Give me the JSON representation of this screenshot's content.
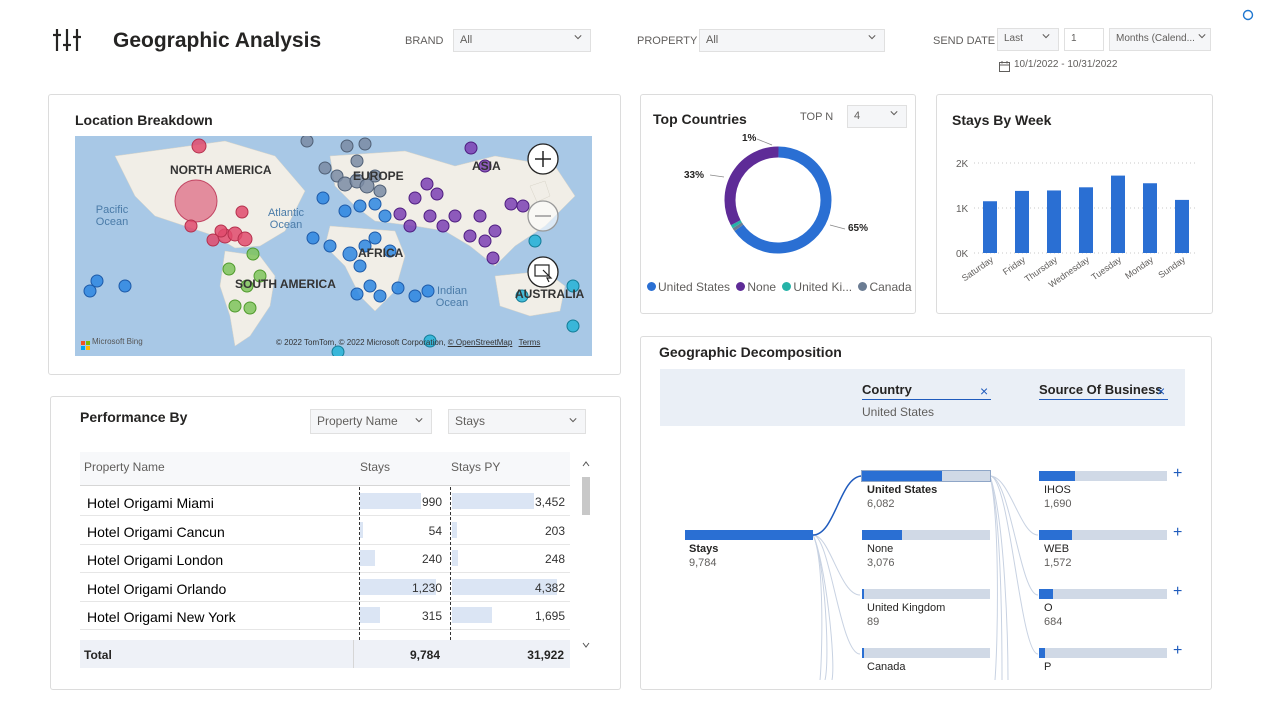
{
  "header": {
    "title": "Geographic Analysis",
    "brand_label": "BRAND",
    "brand_value": "All",
    "property_label": "PROPERTY",
    "property_value": "All",
    "send_date_label": "SEND DATE",
    "send_date_mode": "Last",
    "send_date_count": "1",
    "send_date_unit": "Months (Calend...",
    "date_range": "10/1/2022 - 10/31/2022"
  },
  "location": {
    "title": "Location Breakdown",
    "labels": {
      "north_america": "NORTH AMERICA",
      "europe": "EUROPE",
      "asia": "ASIA",
      "africa": "AFRICA",
      "south_america": "SOUTH AMERICA",
      "australia": "AUSTRALIA",
      "pacific": "Pacific Ocean",
      "atlantic": "Atlantic Ocean",
      "indian": "Indian Ocean"
    },
    "bing": "Microsoft Bing",
    "copyright": "© 2022 TomTom, © 2022 Microsoft Corporation,",
    "osm": "© OpenStreetMap",
    "terms": "Terms"
  },
  "top_countries": {
    "title": "Top Countries",
    "topn_label": "TOP N",
    "topn_value": "4",
    "label_65": "65%",
    "label_33": "33%",
    "label_1": "1%",
    "legend": [
      "United States",
      "None",
      "United Ki...",
      "Canada"
    ],
    "colors": [
      "#2a6fd3",
      "#5e2b97",
      "#26b3a8",
      "#6b7c93"
    ]
  },
  "stays_by_week": {
    "title": "Stays By Week"
  },
  "performance": {
    "title": "Performance By",
    "dim_select": "Property Name",
    "measure_select": "Stays",
    "col_name": "Property Name",
    "col_stays": "Stays",
    "col_py": "Stays PY",
    "rows": [
      {
        "name": "Hotel Origami Miami",
        "stays": "990",
        "py": "3,452"
      },
      {
        "name": "Hotel Origami Cancun",
        "stays": "54",
        "py": "203"
      },
      {
        "name": "Hotel Origami London",
        "stays": "240",
        "py": "248"
      },
      {
        "name": "Hotel Origami Orlando",
        "stays": "1,230",
        "py": "4,382"
      },
      {
        "name": "Hotel Origami New York",
        "stays": "315",
        "py": "1,695"
      }
    ],
    "total_label": "Total",
    "total_stays": "9,784",
    "total_py": "31,922"
  },
  "decomp": {
    "title": "Geographic Decomposition",
    "level1_name": "Country",
    "level1_value": "United States",
    "level2_name": "Source Of Business",
    "root_label": "Stays",
    "root_value": "9,784",
    "countries": [
      {
        "name": "United States",
        "value": "6,082"
      },
      {
        "name": "None",
        "value": "3,076"
      },
      {
        "name": "United Kingdom",
        "value": "89"
      },
      {
        "name": "Canada",
        "value": ""
      }
    ],
    "sources": [
      {
        "name": "IHOS",
        "value": "1,690"
      },
      {
        "name": "WEB",
        "value": "1,572"
      },
      {
        "name": "O",
        "value": "684"
      },
      {
        "name": "P",
        "value": ""
      }
    ]
  },
  "chart_data": [
    {
      "type": "pie",
      "title": "Top Countries",
      "categories": [
        "United States",
        "None",
        "United Ki...",
        "Canada"
      ],
      "values": [
        65,
        33,
        1,
        1
      ],
      "legend": "bottom"
    },
    {
      "type": "bar",
      "title": "Stays By Week",
      "categories": [
        "Saturday",
        "Friday",
        "Thursday",
        "Wednesday",
        "Tuesday",
        "Monday",
        "Sunday"
      ],
      "values": [
        1150,
        1380,
        1390,
        1460,
        1720,
        1550,
        1180
      ],
      "ylim": [
        0,
        2000
      ],
      "yticks": [
        "0K",
        "1K",
        "2K"
      ],
      "grid": true
    }
  ]
}
